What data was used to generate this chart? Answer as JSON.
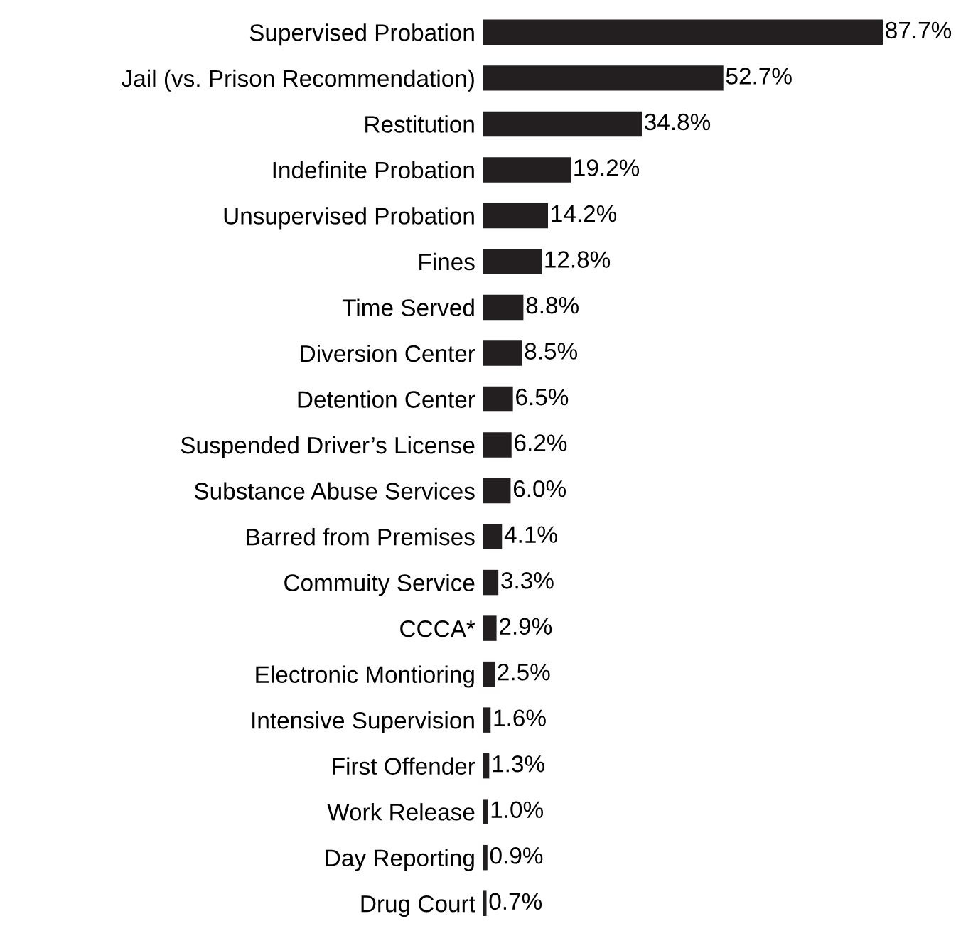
{
  "chart_data": {
    "type": "bar",
    "orientation": "horizontal",
    "color": "#231f20",
    "categories": [
      "Supervised Probation",
      "Jail (vs. Prison Recommendation)",
      "Restitution",
      "Indefinite Probation",
      "Unsupervised Probation",
      "Fines",
      "Time Served",
      "Diversion Center",
      "Detention Center",
      "Suspended Driver’s License",
      "Substance Abuse Services",
      "Barred from Premises",
      "Commuity Service",
      "CCCA*",
      "Electronic Montioring",
      "Intensive Supervision",
      "First Offender",
      "Work Release",
      "Day Reporting",
      "Drug Court"
    ],
    "values": [
      87.7,
      52.7,
      34.8,
      19.2,
      14.2,
      12.8,
      8.8,
      8.5,
      6.5,
      6.2,
      6.0,
      4.1,
      3.3,
      2.9,
      2.5,
      1.6,
      1.3,
      1.0,
      0.9,
      0.7
    ],
    "value_labels": [
      "87.7%",
      "52.7%",
      "34.8%",
      "19.2%",
      "14.2%",
      "12.8%",
      "8.8%",
      "8.5%",
      "6.5%",
      "6.2%",
      "6.0%",
      "4.1%",
      "3.3%",
      "2.9%",
      "2.5%",
      "1.6%",
      "1.3%",
      "1.0%",
      "0.9%",
      "0.7%"
    ],
    "grid": false,
    "legend": false
  }
}
